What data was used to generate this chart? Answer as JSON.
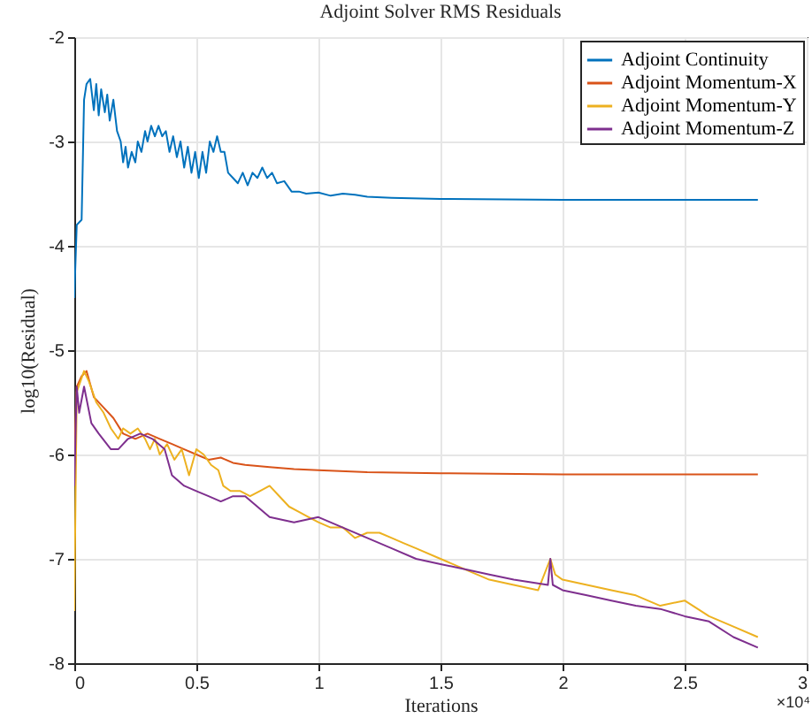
{
  "chart_data": {
    "type": "line",
    "title": "Adjoint Solver RMS Residuals",
    "xlabel": "Iterations",
    "ylabel": "log10(Residual)",
    "annotations": [
      "×10⁴"
    ],
    "xlim": [
      0,
      3
    ],
    "xticks": [
      0,
      0.5,
      1,
      1.5,
      2,
      2.5,
      3
    ],
    "ylim": [
      -8,
      -2
    ],
    "yticks": [
      -8,
      -7,
      -6,
      -5,
      -4,
      -3,
      -2
    ],
    "grid": true,
    "legend": "top right",
    "line_style": "solid",
    "series": [
      {
        "name": "Adjoint Continuity",
        "color": "#0072bd",
        "x": [
          0,
          0.01,
          0.03,
          0.04,
          0.05,
          0.065,
          0.08,
          0.09,
          0.1,
          0.11,
          0.125,
          0.135,
          0.145,
          0.16,
          0.175,
          0.19,
          0.2,
          0.21,
          0.22,
          0.235,
          0.25,
          0.26,
          0.275,
          0.29,
          0.3,
          0.315,
          0.33,
          0.345,
          0.36,
          0.375,
          0.39,
          0.405,
          0.42,
          0.435,
          0.45,
          0.465,
          0.48,
          0.495,
          0.51,
          0.525,
          0.54,
          0.555,
          0.57,
          0.585,
          0.6,
          0.615,
          0.63,
          0.65,
          0.67,
          0.69,
          0.71,
          0.73,
          0.75,
          0.77,
          0.79,
          0.81,
          0.83,
          0.86,
          0.89,
          0.92,
          0.95,
          1.0,
          1.05,
          1.1,
          1.15,
          1.2,
          1.3,
          1.5,
          2.0,
          2.8
        ],
        "values": [
          -4.5,
          -3.8,
          -3.75,
          -2.6,
          -2.45,
          -2.4,
          -2.7,
          -2.45,
          -2.75,
          -2.5,
          -2.72,
          -2.55,
          -2.8,
          -2.6,
          -2.9,
          -3.0,
          -3.2,
          -3.05,
          -3.25,
          -3.1,
          -3.2,
          -3.0,
          -3.1,
          -2.9,
          -3.0,
          -2.85,
          -2.95,
          -2.85,
          -2.95,
          -2.9,
          -3.1,
          -2.95,
          -3.15,
          -3.0,
          -3.25,
          -3.05,
          -3.3,
          -3.1,
          -3.35,
          -3.1,
          -3.3,
          -3.0,
          -3.1,
          -2.95,
          -3.1,
          -3.1,
          -3.3,
          -3.35,
          -3.4,
          -3.3,
          -3.42,
          -3.3,
          -3.35,
          -3.25,
          -3.35,
          -3.3,
          -3.4,
          -3.38,
          -3.48,
          -3.48,
          -3.5,
          -3.49,
          -3.52,
          -3.5,
          -3.51,
          -3.53,
          -3.54,
          -3.55,
          -3.56,
          -3.56
        ]
      },
      {
        "name": "Adjoint Momentum-X",
        "color": "#d95319",
        "x": [
          0,
          0.01,
          0.03,
          0.05,
          0.08,
          0.12,
          0.16,
          0.2,
          0.25,
          0.3,
          0.35,
          0.4,
          0.45,
          0.5,
          0.55,
          0.6,
          0.65,
          0.7,
          0.8,
          0.9,
          1.0,
          1.2,
          1.5,
          2.0,
          2.8
        ],
        "values": [
          -6.0,
          -5.35,
          -5.25,
          -5.2,
          -5.45,
          -5.55,
          -5.65,
          -5.8,
          -5.85,
          -5.8,
          -5.85,
          -5.9,
          -5.95,
          -6.0,
          -6.05,
          -6.03,
          -6.08,
          -6.1,
          -6.12,
          -6.14,
          -6.15,
          -6.17,
          -6.18,
          -6.19,
          -6.19
        ]
      },
      {
        "name": "Adjoint Momentum-Y",
        "color": "#edb120",
        "x": [
          0,
          0.01,
          0.04,
          0.06,
          0.09,
          0.12,
          0.15,
          0.18,
          0.2,
          0.23,
          0.26,
          0.29,
          0.31,
          0.33,
          0.35,
          0.38,
          0.41,
          0.44,
          0.47,
          0.5,
          0.53,
          0.56,
          0.59,
          0.61,
          0.64,
          0.68,
          0.72,
          0.76,
          0.8,
          0.84,
          0.88,
          0.92,
          0.96,
          1.0,
          1.05,
          1.1,
          1.15,
          1.2,
          1.25,
          1.3,
          1.35,
          1.4,
          1.5,
          1.6,
          1.7,
          1.8,
          1.9,
          1.95,
          1.97,
          2.0,
          2.1,
          2.2,
          2.3,
          2.4,
          2.5,
          2.6,
          2.7,
          2.8
        ],
        "values": [
          -7.5,
          -5.4,
          -5.2,
          -5.3,
          -5.5,
          -5.6,
          -5.75,
          -5.85,
          -5.75,
          -5.8,
          -5.75,
          -5.85,
          -5.95,
          -5.85,
          -6.0,
          -5.9,
          -6.05,
          -5.95,
          -6.2,
          -5.95,
          -6.0,
          -6.1,
          -6.15,
          -6.3,
          -6.35,
          -6.35,
          -6.4,
          -6.35,
          -6.3,
          -6.4,
          -6.5,
          -6.55,
          -6.6,
          -6.65,
          -6.7,
          -6.7,
          -6.8,
          -6.75,
          -6.75,
          -6.8,
          -6.85,
          -6.9,
          -7.0,
          -7.1,
          -7.2,
          -7.25,
          -7.3,
          -7.0,
          -7.15,
          -7.2,
          -7.25,
          -7.3,
          -7.35,
          -7.45,
          -7.4,
          -7.55,
          -7.65,
          -7.75
        ]
      },
      {
        "name": "Adjoint Momentum-Z",
        "color": "#7e2f8e",
        "x": [
          0,
          0.01,
          0.02,
          0.04,
          0.07,
          0.1,
          0.15,
          0.18,
          0.22,
          0.27,
          0.32,
          0.37,
          0.4,
          0.45,
          0.5,
          0.55,
          0.6,
          0.65,
          0.7,
          0.75,
          0.8,
          0.9,
          1.0,
          1.1,
          1.2,
          1.3,
          1.4,
          1.5,
          1.6,
          1.7,
          1.8,
          1.94,
          1.95,
          1.96,
          2.0,
          2.1,
          2.2,
          2.3,
          2.4,
          2.5,
          2.6,
          2.7,
          2.8
        ],
        "values": [
          -6.3,
          -5.35,
          -5.6,
          -5.35,
          -5.7,
          -5.8,
          -5.95,
          -5.95,
          -5.85,
          -5.8,
          -5.85,
          -5.95,
          -6.2,
          -6.3,
          -6.35,
          -6.4,
          -6.45,
          -6.4,
          -6.4,
          -6.5,
          -6.6,
          -6.65,
          -6.6,
          -6.7,
          -6.8,
          -6.9,
          -7.0,
          -7.05,
          -7.1,
          -7.15,
          -7.2,
          -7.25,
          -7.0,
          -7.25,
          -7.3,
          -7.35,
          -7.4,
          -7.45,
          -7.48,
          -7.55,
          -7.6,
          -7.75,
          -7.85
        ]
      }
    ]
  }
}
